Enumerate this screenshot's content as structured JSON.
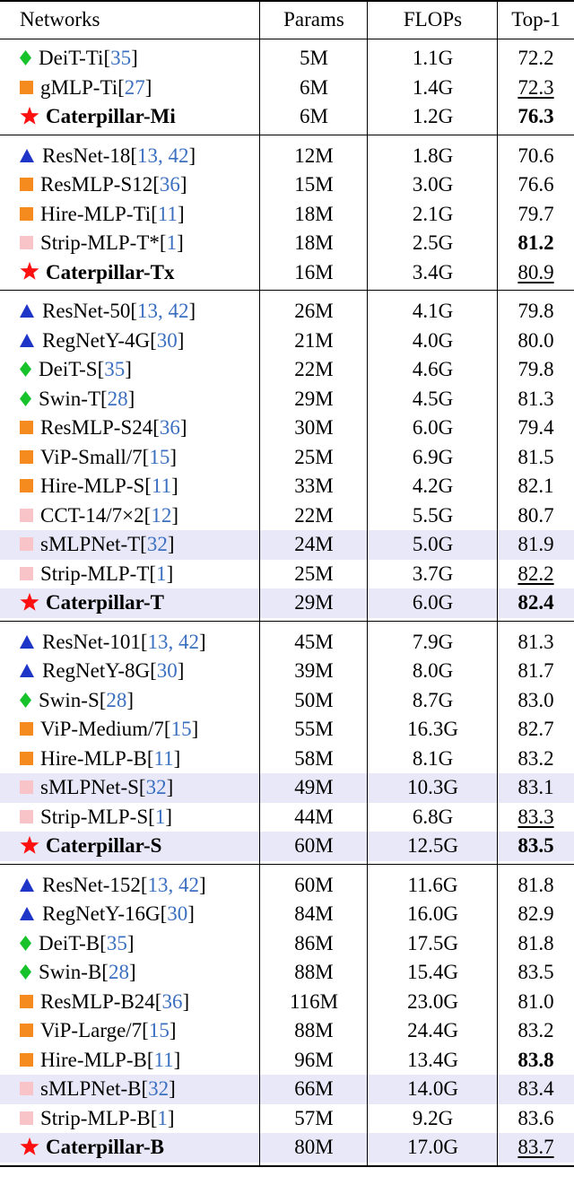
{
  "header": {
    "networks": "Networks",
    "params": "Params",
    "flops": "FLOPs",
    "top1": "Top-1"
  },
  "colors": {
    "triangle": "#1f35c8",
    "orange-square": "#f58a1f",
    "pink-square": "#f8c4c8",
    "diamond": "#17c22b",
    "star": "#ff1010",
    "highlight": "#e8e8f8",
    "reference": "#3b6fc0"
  },
  "groups": [
    {
      "rows": [
        {
          "icon": "diamond",
          "name": "DeiT-Ti",
          "ref": "[35]",
          "params": "5M",
          "flops": "1.1G",
          "top1": "72.2"
        },
        {
          "icon": "orange-square",
          "name": "gMLP-Ti",
          "ref": "[27]",
          "params": "6M",
          "flops": "1.4G",
          "top1": "72.3",
          "top1_style": "underline"
        },
        {
          "icon": "star",
          "name": "Caterpillar-Mi",
          "ref": "",
          "params": "6M",
          "flops": "1.2G",
          "top1": "76.3",
          "bold": true,
          "top1_style": "bold"
        }
      ]
    },
    {
      "rows": [
        {
          "icon": "triangle",
          "name": "ResNet-18",
          "ref": "[13, 42]",
          "params": "12M",
          "flops": "1.8G",
          "top1": "70.6"
        },
        {
          "icon": "orange-square",
          "name": "ResMLP-S12",
          "ref": "[36]",
          "params": "15M",
          "flops": "3.0G",
          "top1": "76.6"
        },
        {
          "icon": "orange-square",
          "name": "Hire-MLP-Ti",
          "ref": "[11]",
          "params": "18M",
          "flops": "2.1G",
          "top1": "79.7"
        },
        {
          "icon": "pink-square",
          "name": "Strip-MLP-T*",
          "ref": "[1]",
          "params": "18M",
          "flops": "2.5G",
          "top1": "81.2",
          "top1_style": "bold"
        },
        {
          "icon": "star",
          "name": "Caterpillar-Tx",
          "ref": "",
          "params": "16M",
          "flops": "3.4G",
          "top1": "80.9",
          "bold": true,
          "top1_style": "underline"
        }
      ]
    },
    {
      "rows": [
        {
          "icon": "triangle",
          "name": "ResNet-50",
          "ref": "[13, 42]",
          "params": "26M",
          "flops": "4.1G",
          "top1": "79.8"
        },
        {
          "icon": "triangle",
          "name": "RegNetY-4G",
          "ref": "[30]",
          "params": "21M",
          "flops": "4.0G",
          "top1": "80.0"
        },
        {
          "icon": "diamond",
          "name": "DeiT-S",
          "ref": "[35]",
          "params": "22M",
          "flops": "4.6G",
          "top1": "79.8"
        },
        {
          "icon": "diamond",
          "name": "Swin-T",
          "ref": "[28]",
          "params": "29M",
          "flops": "4.5G",
          "top1": "81.3"
        },
        {
          "icon": "orange-square",
          "name": "ResMLP-S24",
          "ref": "[36]",
          "params": "30M",
          "flops": "6.0G",
          "top1": "79.4"
        },
        {
          "icon": "orange-square",
          "name": "ViP-Small/7",
          "ref": "[15]",
          "params": "25M",
          "flops": "6.9G",
          "top1": "81.5"
        },
        {
          "icon": "orange-square",
          "name": "Hire-MLP-S",
          "ref": "[11]",
          "params": "33M",
          "flops": "4.2G",
          "top1": "82.1"
        },
        {
          "icon": "pink-square",
          "name": "CCT-14/7×2",
          "ref": "[12]",
          "params": "22M",
          "flops": "5.5G",
          "top1": "80.7"
        },
        {
          "icon": "pink-square",
          "name": "sMLPNet-T",
          "ref": "[32]",
          "params": "24M",
          "flops": "5.0G",
          "top1": "81.9",
          "highlight": true
        },
        {
          "icon": "pink-square",
          "name": "Strip-MLP-T",
          "ref": "[1]",
          "params": "25M",
          "flops": "3.7G",
          "top1": "82.2",
          "top1_style": "underline"
        },
        {
          "icon": "star",
          "name": "Caterpillar-T",
          "ref": "",
          "params": "29M",
          "flops": "6.0G",
          "top1": "82.4",
          "bold": true,
          "top1_style": "bold",
          "highlight": true
        }
      ]
    },
    {
      "rows": [
        {
          "icon": "triangle",
          "name": "ResNet-101",
          "ref": "[13, 42]",
          "params": "45M",
          "flops": "7.9G",
          "top1": "81.3"
        },
        {
          "icon": "triangle",
          "name": "RegNetY-8G",
          "ref": "[30]",
          "params": "39M",
          "flops": "8.0G",
          "top1": "81.7"
        },
        {
          "icon": "diamond",
          "name": "Swin-S",
          "ref": "[28]",
          "params": "50M",
          "flops": "8.7G",
          "top1": "83.0"
        },
        {
          "icon": "orange-square",
          "name": "ViP-Medium/7",
          "ref": "[15]",
          "params": "55M",
          "flops": "16.3G",
          "top1": "82.7"
        },
        {
          "icon": "orange-square",
          "name": "Hire-MLP-B",
          "ref": "[11]",
          "params": "58M",
          "flops": "8.1G",
          "top1": "83.2"
        },
        {
          "icon": "pink-square",
          "name": "sMLPNet-S",
          "ref": "[32]",
          "params": "49M",
          "flops": "10.3G",
          "top1": "83.1",
          "highlight": true
        },
        {
          "icon": "pink-square",
          "name": "Strip-MLP-S",
          "ref": "[1]",
          "params": "44M",
          "flops": "6.8G",
          "top1": "83.3",
          "top1_style": "underline"
        },
        {
          "icon": "star",
          "name": "Caterpillar-S",
          "ref": "",
          "params": "60M",
          "flops": "12.5G",
          "top1": "83.5",
          "bold": true,
          "top1_style": "bold",
          "highlight": true
        }
      ]
    },
    {
      "rows": [
        {
          "icon": "triangle",
          "name": "ResNet-152",
          "ref": "[13, 42]",
          "params": "60M",
          "flops": "11.6G",
          "top1": "81.8"
        },
        {
          "icon": "triangle",
          "name": "RegNetY-16G",
          "ref": "[30]",
          "params": "84M",
          "flops": "16.0G",
          "top1": "82.9"
        },
        {
          "icon": "diamond",
          "name": "DeiT-B",
          "ref": "[35]",
          "params": "86M",
          "flops": "17.5G",
          "top1": "81.8"
        },
        {
          "icon": "diamond",
          "name": "Swin-B",
          "ref": "[28]",
          "params": "88M",
          "flops": "15.4G",
          "top1": "83.5"
        },
        {
          "icon": "orange-square",
          "name": "ResMLP-B24",
          "ref": "[36]",
          "params": "116M",
          "flops": "23.0G",
          "top1": "81.0"
        },
        {
          "icon": "orange-square",
          "name": "ViP-Large/7",
          "ref": "[15]",
          "params": "88M",
          "flops": "24.4G",
          "top1": "83.2"
        },
        {
          "icon": "orange-square",
          "name": "Hire-MLP-B",
          "ref": "[11]",
          "params": "96M",
          "flops": "13.4G",
          "top1": "83.8",
          "top1_style": "bold"
        },
        {
          "icon": "pink-square",
          "name": "sMLPNet-B",
          "ref": "[32]",
          "params": "66M",
          "flops": "14.0G",
          "top1": "83.4",
          "highlight": true
        },
        {
          "icon": "pink-square",
          "name": "Strip-MLP-B",
          "ref": "[1]",
          "params": "57M",
          "flops": "9.2G",
          "top1": "83.6"
        },
        {
          "icon": "star",
          "name": "Caterpillar-B",
          "ref": "",
          "params": "80M",
          "flops": "17.0G",
          "top1": "83.7",
          "bold": true,
          "top1_style": "underline",
          "highlight": true
        }
      ]
    }
  ]
}
